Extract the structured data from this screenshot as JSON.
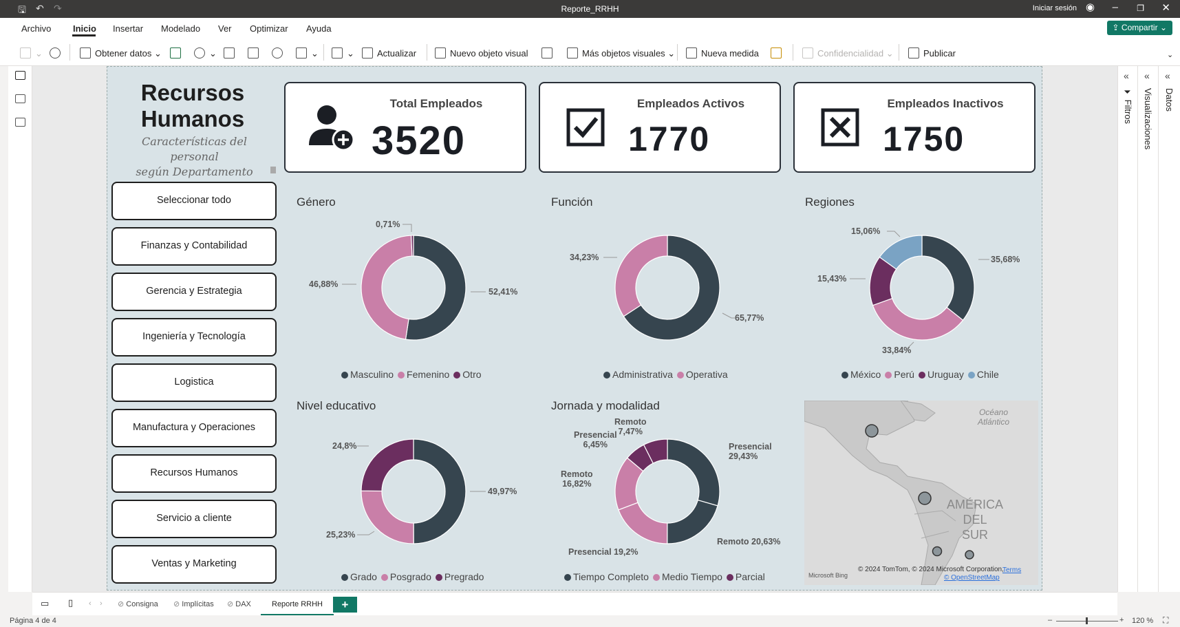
{
  "titlebar": {
    "title": "Reporte_RRHH",
    "signin": "Iniciar sesión"
  },
  "menu": {
    "items": [
      "Archivo",
      "Inicio",
      "Insertar",
      "Modelado",
      "Ver",
      "Optimizar",
      "Ayuda"
    ],
    "share": "Compartir"
  },
  "ribbon": {
    "obtener_datos": "Obtener datos",
    "actualizar": "Actualizar",
    "nuevo_objeto_visual": "Nuevo objeto visual",
    "mas_objetos_visuales": "Más objetos visuales",
    "nueva_medida": "Nueva medida",
    "confidencialidad": "Confidencialidad",
    "publicar": "Publicar"
  },
  "panels": {
    "filtros": "Filtros",
    "visualizaciones": "Visualizaciones",
    "datos": "Datos"
  },
  "report": {
    "title_line1": "Recursos",
    "title_line2": "Humanos",
    "subtitle_line1": "Características del personal",
    "subtitle_line2": "según Departamento"
  },
  "slicer": [
    "Seleccionar todo",
    "Finanzas y Contabilidad",
    "Gerencia y Estrategia",
    "Ingeniería y Tecnología",
    "Logistica",
    "Manufactura y Operaciones",
    "Recursos Humanos",
    "Servicio a cliente",
    "Ventas y Marketing"
  ],
  "kpis": [
    {
      "label": "Total Empleados",
      "value": "3520",
      "icon": "add-user-icon"
    },
    {
      "label": "Empleados Activos",
      "value": "1770",
      "icon": "checkbox-checked-icon"
    },
    {
      "label": "Empleados Inactivos",
      "value": "1750",
      "icon": "checkbox-x-icon"
    }
  ],
  "colors": {
    "dark": "#36454f",
    "pink": "#c97fa8",
    "purple": "#6b2e5f",
    "blue": "#7aa3c4",
    "accent": "#117865"
  },
  "chart_data": [
    {
      "type": "pie",
      "title": "Género",
      "categories": [
        "Masculino",
        "Femenino",
        "Otro"
      ],
      "values": [
        52.41,
        46.88,
        0.71
      ],
      "labels": [
        "52,41%",
        "46,88%",
        "0,71%"
      ],
      "legend": "bottom"
    },
    {
      "type": "pie",
      "title": "Función",
      "categories": [
        "Administrativa",
        "Operativa"
      ],
      "values": [
        65.77,
        34.23
      ],
      "labels": [
        "65,77%",
        "34,23%"
      ],
      "legend": "bottom"
    },
    {
      "type": "pie",
      "title": "Regiones",
      "categories": [
        "México",
        "Perú",
        "Uruguay",
        "Chile"
      ],
      "values": [
        35.68,
        33.84,
        15.43,
        15.06
      ],
      "labels": [
        "35,68%",
        "33,84%",
        "15,43%",
        "15,06%"
      ],
      "legend": "bottom"
    },
    {
      "type": "pie",
      "title": "Nivel educativo",
      "categories": [
        "Grado",
        "Posgrado",
        "Pregrado"
      ],
      "values": [
        49.97,
        25.23,
        24.8
      ],
      "labels": [
        "49,97%",
        "25,23%",
        "24,8%"
      ],
      "legend": "bottom"
    },
    {
      "type": "pie",
      "title": "Jornada y modalidad",
      "categories": [
        "Tiempo Completo",
        "Medio Tiempo",
        "Parcial"
      ],
      "segments": [
        {
          "group": "Tiempo Completo",
          "label_a": "Presencial",
          "label_b": "29,43%",
          "value": 29.43
        },
        {
          "group": "Tiempo Completo",
          "label_a": "Remoto 20,63%",
          "label_b": "",
          "value": 20.63
        },
        {
          "group": "Medio Tiempo",
          "label_a": "Presencial 19,2%",
          "label_b": "",
          "value": 19.2
        },
        {
          "group": "Medio Tiempo",
          "label_a": "Remoto",
          "label_b": "16,82%",
          "value": 16.82
        },
        {
          "group": "Parcial",
          "label_a": "Presencial",
          "label_b": "6,45%",
          "value": 6.45
        },
        {
          "group": "Parcial",
          "label_a": "Remoto",
          "label_b": "7,47%",
          "value": 7.47
        }
      ],
      "legend": "bottom"
    }
  ],
  "map": {
    "ocean_line1": "Océano",
    "ocean_line2": "Atlántico",
    "continent_line1": "AMÉRICA",
    "continent_line2": "DEL",
    "continent_line3": "SUR",
    "copyright": "© 2024 TomTom, © 2024 Microsoft Corporation,",
    "terms": "Terms",
    "osm": "© OpenStreetMap",
    "bing": "Microsoft Bing"
  },
  "pages": {
    "tabs": [
      "Consigna",
      "Implícitas",
      "DAX",
      "Reporte RRHH"
    ],
    "add": "+"
  },
  "status": {
    "page": "Página 4 de 4",
    "zoom": "120 %"
  }
}
